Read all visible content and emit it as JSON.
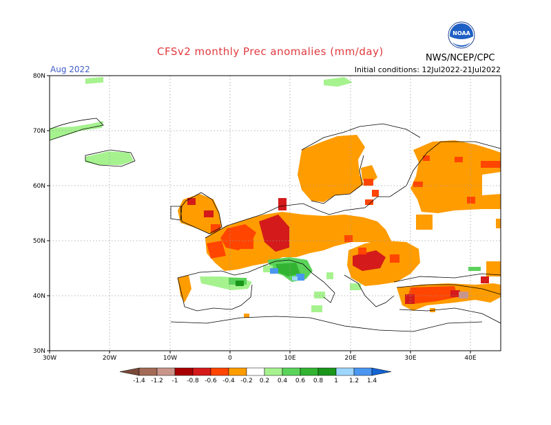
{
  "title": "CFSv2 monthly Prec anomalies (mm/day)",
  "forecast_month": "Aug 2022",
  "initial_conditions": "Initial conditions: 12Jul2022-21Jul2022",
  "agency": "NWS/NCEP/CPC",
  "logo_text": "NOAA",
  "map": {
    "lon_range": [
      -30,
      45
    ],
    "lat_range": [
      30,
      80
    ],
    "lat_ticks": [
      "80N",
      "70N",
      "60N",
      "50N",
      "40N",
      "30N"
    ],
    "lon_ticks": [
      "30W",
      "20W",
      "10W",
      "0",
      "10E",
      "20E",
      "30E",
      "40E"
    ],
    "grid": "dotted"
  },
  "colorbar": {
    "labels": [
      "-1.4",
      "-1.2",
      "-1",
      "-0.8",
      "-0.6",
      "-0.4",
      "-0.2",
      "0.2",
      "0.4",
      "0.6",
      "0.8",
      "1",
      "1.2",
      "1.4"
    ],
    "colors": [
      "#7a4a3a",
      "#a36a55",
      "#c9958a",
      "#a80000",
      "#d41a1a",
      "#ff4500",
      "#ff9c00",
      "#ffffff",
      "#a6f28f",
      "#5bd35b",
      "#32b432",
      "#1a961a",
      "#9ed6ff",
      "#4a96f0",
      "#1464d2"
    ]
  },
  "chart_data": {
    "type": "heatmap",
    "title": "CFSv2 monthly Prec anomalies (mm/day)",
    "units": "mm/day",
    "x_axis": "longitude",
    "y_axis": "latitude",
    "xlim": [
      -30,
      45
    ],
    "ylim": [
      30,
      80
    ],
    "regions": [
      {
        "region": "Greenland coast",
        "lon": [
          -30,
          -22
        ],
        "lat": [
          67,
          72
        ],
        "anomaly": 0.3
      },
      {
        "region": "Iceland",
        "lon": [
          -22,
          -14
        ],
        "lat": [
          64,
          66
        ],
        "anomaly": 0.3
      },
      {
        "region": "Svalbard area",
        "lon": [
          15,
          22
        ],
        "lat": [
          78,
          80
        ],
        "anomaly": 0.3
      },
      {
        "region": "British Isles",
        "lon": [
          -10,
          2
        ],
        "lat": [
          50,
          58
        ],
        "anomaly": -0.3
      },
      {
        "region": "France",
        "lon": [
          -4,
          8
        ],
        "lat": [
          43,
          50
        ],
        "anomaly": -0.4
      },
      {
        "region": "Benelux and western Germany",
        "lon": [
          3,
          10
        ],
        "lat": [
          49,
          54
        ],
        "anomaly": -0.6
      },
      {
        "region": "Scandinavia",
        "lon": [
          5,
          28
        ],
        "lat": [
          56,
          70
        ],
        "anomaly": -0.2
      },
      {
        "region": "Baltic and Poland",
        "lon": [
          14,
          28
        ],
        "lat": [
          50,
          58
        ],
        "anomaly": -0.2
      },
      {
        "region": "Romania and Balkans",
        "lon": [
          20,
          30
        ],
        "lat": [
          42,
          48
        ],
        "anomaly": -0.5
      },
      {
        "region": "Western Russia",
        "lon": [
          30,
          45
        ],
        "lat": [
          52,
          67
        ],
        "anomaly": -0.2
      },
      {
        "region": "Turkey",
        "lon": [
          30,
          45
        ],
        "lat": [
          37,
          42
        ],
        "anomaly": -0.5
      },
      {
        "region": "Alps and northern Italy",
        "lon": [
          6,
          14
        ],
        "lat": [
          43,
          47
        ],
        "anomaly": 0.5
      },
      {
        "region": "Ligurian Sea",
        "lon": [
          7,
          10
        ],
        "lat": [
          42,
          44
        ],
        "anomaly": 1.0
      },
      {
        "region": "Northern Iberia",
        "lon": [
          -8,
          3
        ],
        "lat": [
          41,
          43
        ],
        "anomaly": 0.3
      }
    ]
  }
}
